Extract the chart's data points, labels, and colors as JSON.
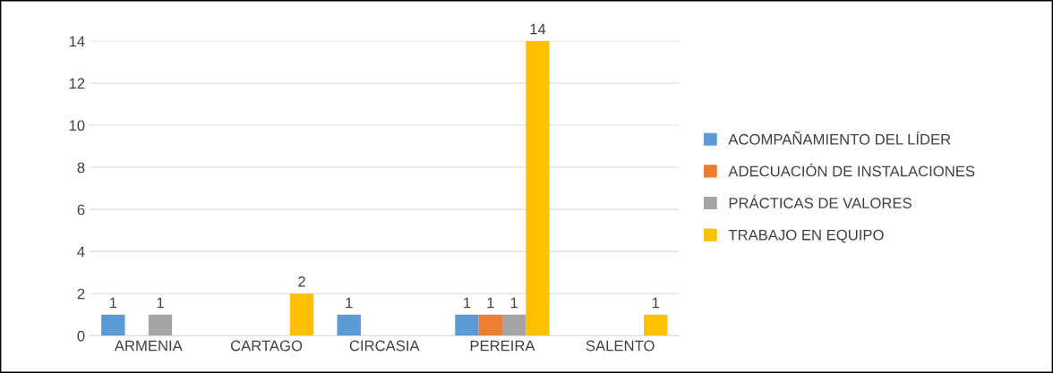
{
  "chart_data": {
    "type": "bar",
    "categories": [
      "ARMENIA",
      "CARTAGO",
      "CIRCASIA",
      "PEREIRA",
      "SALENTO"
    ],
    "series": [
      {
        "name": "ACOMPAÑAMIENTO DEL LÍDER",
        "color": "#5b9bd5",
        "values": [
          1,
          null,
          1,
          1,
          null
        ]
      },
      {
        "name": "ADECUACIÓN DE INSTALACIONES",
        "color": "#ed7d31",
        "values": [
          null,
          null,
          null,
          1,
          null
        ]
      },
      {
        "name": "PRÁCTICAS DE VALORES",
        "color": "#a5a5a5",
        "values": [
          1,
          null,
          null,
          1,
          null
        ]
      },
      {
        "name": "TRABAJO EN EQUIPO",
        "color": "#ffc000",
        "values": [
          null,
          2,
          null,
          14,
          1
        ]
      }
    ],
    "ylim": [
      0,
      14
    ],
    "yticks": [
      0,
      2,
      4,
      6,
      8,
      10,
      12,
      14
    ],
    "grid": "y",
    "legend": "right",
    "data_labels": true
  }
}
